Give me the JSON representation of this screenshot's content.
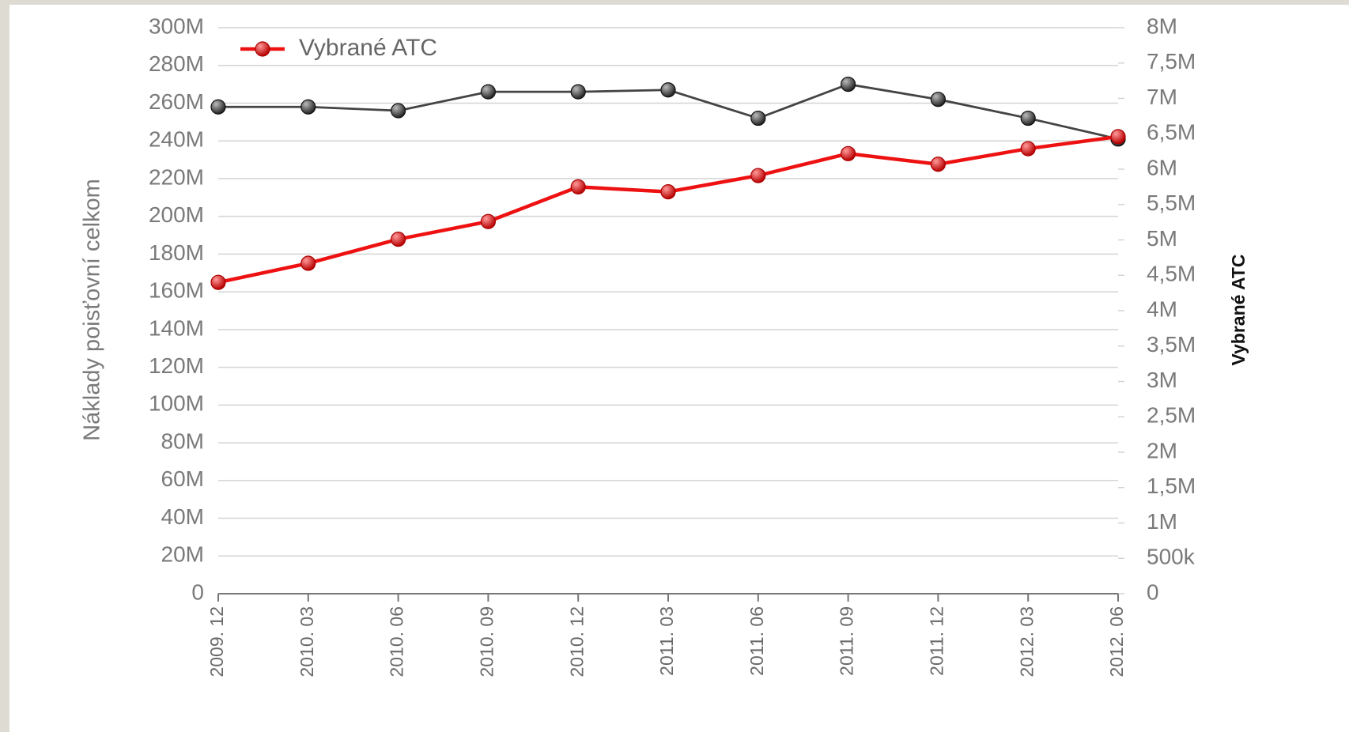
{
  "chart_data": {
    "type": "line",
    "y_label": "Náklady poisťovní celkom",
    "y2_label": "Vybrané ATC",
    "categories": [
      "2009. 12",
      "2010. 03",
      "2010. 06",
      "2010. 09",
      "2010. 12",
      "2011. 03",
      "2011. 06",
      "2011. 09",
      "2011. 12",
      "2012. 03",
      "2012. 06"
    ],
    "series": [
      {
        "color": "#444444",
        "axis": "y",
        "values": [
          258000000,
          258000000,
          256000000,
          266000000,
          266000000,
          267000000,
          252000000,
          270000000,
          262000000,
          252000000,
          241000000
        ]
      },
      {
        "name": "Vybrané ATC",
        "color": "#ee1111",
        "axis": "y2",
        "values": [
          4400000,
          4670000,
          5010000,
          5260000,
          5750000,
          5680000,
          5910000,
          6220000,
          6070000,
          6290000,
          6460000
        ]
      }
    ],
    "ylim": [
      0,
      300000000
    ],
    "yticks": [
      0,
      {
        "value": 20000000,
        "label": "20M"
      },
      {
        "value": 40000000,
        "label": "40M"
      },
      {
        "value": 60000000,
        "label": "60M"
      },
      {
        "value": 80000000,
        "label": "80M"
      },
      {
        "value": 100000000,
        "label": "100M"
      },
      {
        "value": 120000000,
        "label": "120M"
      },
      {
        "value": 140000000,
        "label": "140M"
      },
      {
        "value": 160000000,
        "label": "160M"
      },
      {
        "value": 180000000,
        "label": "180M"
      },
      {
        "value": 200000000,
        "label": "200M"
      },
      {
        "value": 220000000,
        "label": "220M"
      },
      {
        "value": 240000000,
        "label": "240M"
      },
      {
        "value": 260000000,
        "label": "260M"
      },
      {
        "value": 280000000,
        "label": "280M"
      },
      {
        "value": 300000000,
        "label": "300M"
      }
    ],
    "y2lim": [
      0,
      8000000
    ],
    "y2ticks": [
      0,
      {
        "value": 500000,
        "label": "500k"
      },
      {
        "value": 1000000,
        "label": "1M"
      },
      {
        "value": 1500000,
        "label": "1,5M"
      },
      {
        "value": 2000000,
        "label": "2M"
      },
      {
        "value": 2500000,
        "label": "2,5M"
      },
      {
        "value": 3000000,
        "label": "3M"
      },
      {
        "value": 3500000,
        "label": "3,5M"
      },
      {
        "value": 4000000,
        "label": "4M"
      },
      {
        "value": 4500000,
        "label": "4,5M"
      },
      {
        "value": 5000000,
        "label": "5M"
      },
      {
        "value": 5500000,
        "label": "5,5M"
      },
      {
        "value": 6000000,
        "label": "6M"
      },
      {
        "value": 6500000,
        "label": "6,5M"
      },
      {
        "value": 7000000,
        "label": "7M"
      },
      {
        "value": 7500000,
        "label": "7,5M"
      },
      {
        "value": 8000000,
        "label": "8M"
      }
    ],
    "grid": true,
    "legend": "top-left"
  }
}
